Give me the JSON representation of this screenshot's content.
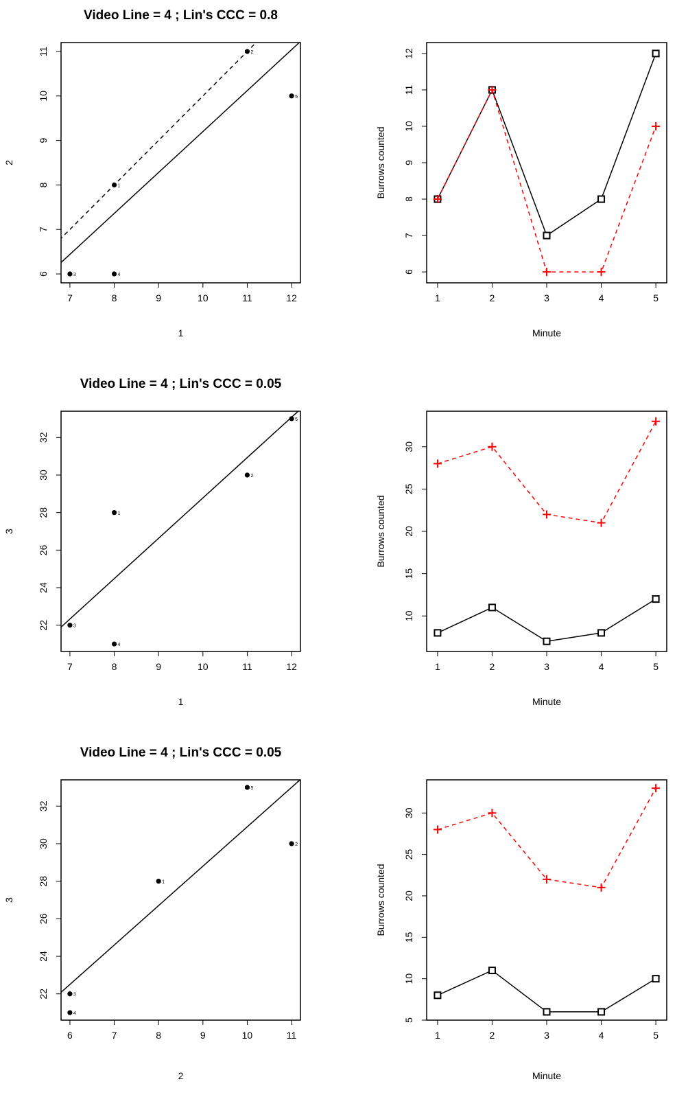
{
  "colors": {
    "series_a": "#000000",
    "series_b": "#ff0000"
  },
  "chart_data": [
    {
      "type": "scatter",
      "title": "Video Line = 4 ; Lin's CCC = 0.8",
      "xlabel": "1",
      "ylabel": "2",
      "xlim": [
        6.8,
        12.2
      ],
      "ylim": [
        5.8,
        11.2
      ],
      "xticks": [
        7,
        8,
        9,
        10,
        11,
        12
      ],
      "yticks": [
        6,
        7,
        8,
        9,
        10,
        11
      ],
      "points": [
        {
          "label": "1",
          "x": 8,
          "y": 8
        },
        {
          "label": "2",
          "x": 11,
          "y": 11
        },
        {
          "label": "3",
          "x": 7,
          "y": 6
        },
        {
          "label": "4",
          "x": 8,
          "y": 6
        },
        {
          "label": "5",
          "x": 12,
          "y": 10
        }
      ],
      "fit_line": {
        "intercept": 0,
        "slope": 0.92
      },
      "identity_line": {
        "intercept": 0,
        "slope": 1
      }
    },
    {
      "type": "line",
      "xlabel": "Minute",
      "ylabel": "Burrows counted",
      "xlim": [
        0.8,
        5.2
      ],
      "ylim": [
        5.7,
        12.3
      ],
      "xticks": [
        1,
        2,
        3,
        4,
        5
      ],
      "yticks": [
        6,
        7,
        8,
        9,
        10,
        11,
        12
      ],
      "x": [
        1,
        2,
        3,
        4,
        5
      ],
      "series": [
        {
          "style": "solid-square",
          "values": [
            8,
            11,
            7,
            8,
            12
          ]
        },
        {
          "style": "dashed-plus",
          "values": [
            8,
            11,
            6,
            6,
            10
          ]
        }
      ]
    },
    {
      "type": "scatter",
      "title": "Video Line = 4 ; Lin's CCC = 0.05",
      "xlabel": "1",
      "ylabel": "3",
      "xlim": [
        6.8,
        12.2
      ],
      "ylim": [
        20.6,
        33.4
      ],
      "xticks": [
        7,
        8,
        9,
        10,
        11,
        12
      ],
      "yticks": [
        22,
        24,
        26,
        28,
        30,
        32
      ],
      "points": [
        {
          "label": "1",
          "x": 8,
          "y": 28
        },
        {
          "label": "2",
          "x": 11,
          "y": 30
        },
        {
          "label": "3",
          "x": 7,
          "y": 22
        },
        {
          "label": "4",
          "x": 8,
          "y": 21
        },
        {
          "label": "5",
          "x": 12,
          "y": 33
        }
      ],
      "fit_line": {
        "intercept": 7.28,
        "slope": 2.15
      }
    },
    {
      "type": "line",
      "xlabel": "Minute",
      "ylabel": "Burrows counted",
      "xlim": [
        0.8,
        5.2
      ],
      "ylim": [
        5.8,
        34.2
      ],
      "xticks": [
        1,
        2,
        3,
        4,
        5
      ],
      "yticks": [
        10,
        15,
        20,
        25,
        30
      ],
      "x": [
        1,
        2,
        3,
        4,
        5
      ],
      "series": [
        {
          "style": "solid-square",
          "values": [
            8,
            11,
            7,
            8,
            12
          ]
        },
        {
          "style": "dashed-plus",
          "values": [
            28,
            30,
            22,
            21,
            33
          ]
        }
      ]
    },
    {
      "type": "scatter",
      "title": "Video Line = 4 ; Lin's CCC = 0.05",
      "xlabel": "2",
      "ylabel": "3",
      "xlim": [
        5.8,
        11.2
      ],
      "ylim": [
        20.6,
        33.4
      ],
      "xticks": [
        6,
        7,
        8,
        9,
        10,
        11
      ],
      "yticks": [
        22,
        24,
        26,
        28,
        30,
        32
      ],
      "points": [
        {
          "label": "1",
          "x": 8,
          "y": 28
        },
        {
          "label": "2",
          "x": 11,
          "y": 30
        },
        {
          "label": "3",
          "x": 6,
          "y": 22
        },
        {
          "label": "4",
          "x": 6,
          "y": 21
        },
        {
          "label": "5",
          "x": 10,
          "y": 33
        }
      ],
      "fit_line": {
        "intercept": 9.9,
        "slope": 2.1
      }
    },
    {
      "type": "line",
      "xlabel": "Minute",
      "ylabel": "Burrows counted",
      "xlim": [
        0.8,
        5.2
      ],
      "ylim": [
        5.0,
        34.0
      ],
      "xticks": [
        1,
        2,
        3,
        4,
        5
      ],
      "yticks": [
        5,
        10,
        15,
        20,
        25,
        30
      ],
      "x": [
        1,
        2,
        3,
        4,
        5
      ],
      "series": [
        {
          "style": "solid-square",
          "values": [
            8,
            11,
            6,
            6,
            10
          ]
        },
        {
          "style": "dashed-plus",
          "values": [
            28,
            30,
            22,
            21,
            33
          ]
        }
      ]
    }
  ]
}
